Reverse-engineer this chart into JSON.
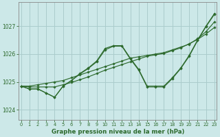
{
  "title": "Graphe pression niveau de la mer (hPa)",
  "bg_color": "#cce8e8",
  "grid_color": "#aacccc",
  "line_color": "#2d6a2d",
  "xlim": [
    -0.3,
    23.3
  ],
  "ylim": [
    1023.65,
    1027.85
  ],
  "yticks": [
    1024,
    1025,
    1026,
    1027
  ],
  "xticks": [
    0,
    1,
    2,
    3,
    4,
    5,
    6,
    7,
    8,
    9,
    10,
    11,
    12,
    13,
    14,
    15,
    16,
    17,
    18,
    19,
    20,
    21,
    22,
    23
  ],
  "series": [
    {
      "x": [
        0,
        1,
        2,
        3,
        4,
        5,
        6,
        7,
        8,
        9,
        10,
        11,
        12,
        13,
        14,
        15,
        16,
        17,
        18,
        19,
        20,
        21,
        22,
        23
      ],
      "y": [
        1024.85,
        1024.75,
        1024.75,
        1024.6,
        1024.45,
        1024.85,
        1025.05,
        1025.3,
        1025.5,
        1025.75,
        1026.2,
        1026.3,
        1026.3,
        1025.85,
        1025.45,
        1024.85,
        1024.85,
        1024.85,
        1025.15,
        1025.5,
        1025.95,
        1026.5,
        1027.0,
        1027.45
      ]
    },
    {
      "x": [
        0,
        1,
        2,
        3,
        4,
        5,
        6,
        7,
        8,
        9,
        10,
        11,
        12,
        13,
        14,
        15,
        16,
        17,
        18,
        19,
        20,
        21,
        22,
        23
      ],
      "y": [
        1024.85,
        1024.85,
        1024.9,
        1024.95,
        1025.0,
        1025.05,
        1025.15,
        1025.25,
        1025.35,
        1025.45,
        1025.55,
        1025.65,
        1025.75,
        1025.85,
        1025.9,
        1025.95,
        1026.0,
        1026.05,
        1026.15,
        1026.25,
        1026.35,
        1026.55,
        1026.8,
        1027.15
      ]
    },
    {
      "x": [
        0,
        1,
        2,
        3,
        4,
        5,
        6,
        7,
        8,
        9,
        10,
        11,
        12,
        13,
        14,
        15,
        16,
        17,
        18,
        19,
        20,
        21,
        22,
        23
      ],
      "y": [
        1024.85,
        1024.82,
        1024.82,
        1024.82,
        1024.82,
        1024.9,
        1024.98,
        1025.08,
        1025.18,
        1025.3,
        1025.42,
        1025.52,
        1025.62,
        1025.72,
        1025.82,
        1025.92,
        1025.97,
        1026.02,
        1026.12,
        1026.22,
        1026.37,
        1026.52,
        1026.72,
        1026.95
      ]
    },
    {
      "x": [
        0,
        1,
        2,
        3,
        4,
        5,
        6,
        7,
        8,
        9,
        10,
        11,
        12,
        13,
        14,
        15,
        16,
        17,
        18,
        19,
        20,
        21,
        22,
        23
      ],
      "y": [
        1024.85,
        1024.75,
        1024.75,
        1024.6,
        1024.45,
        1024.85,
        1025.05,
        1025.28,
        1025.48,
        1025.72,
        1026.15,
        1026.28,
        1026.28,
        1025.82,
        1025.42,
        1024.82,
        1024.82,
        1024.82,
        1025.12,
        1025.48,
        1025.92,
        1026.48,
        1026.98,
        1027.42
      ]
    }
  ]
}
